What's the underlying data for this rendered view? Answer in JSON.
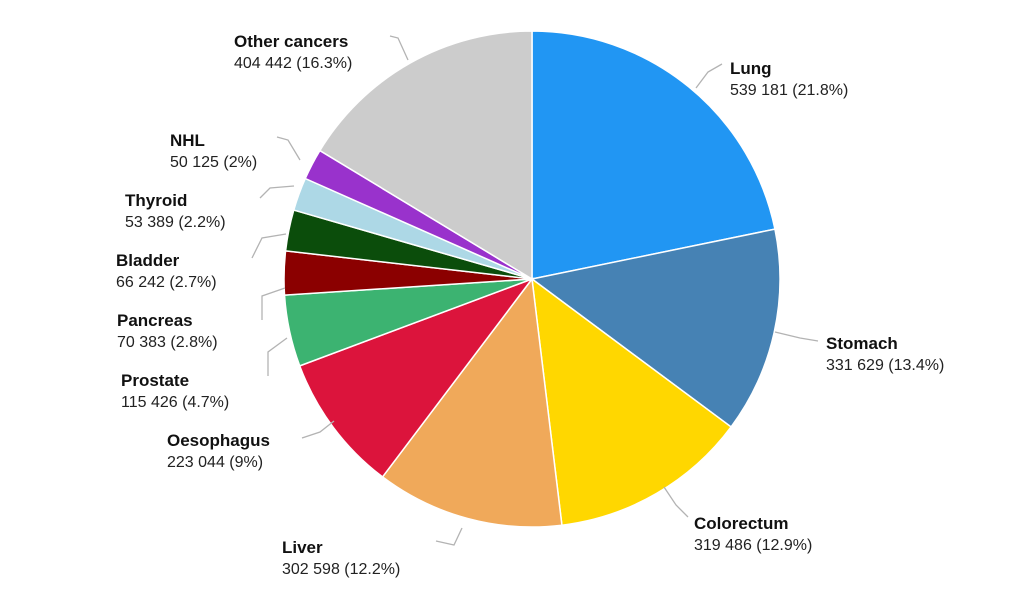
{
  "chart_data": {
    "type": "pie",
    "title": "",
    "start_angle_deg": 0,
    "direction": "clockwise",
    "legend": "none",
    "slices": [
      {
        "name": "Lung",
        "value": 539181,
        "value_label": "539 181",
        "percent_label": "21.8%",
        "color": "#2196F3"
      },
      {
        "name": "Stomach",
        "value": 331629,
        "value_label": "331 629",
        "percent_label": "13.4%",
        "color": "#4682B4"
      },
      {
        "name": "Colorectum",
        "value": 319486,
        "value_label": "319 486",
        "percent_label": "12.9%",
        "color": "#FFD700"
      },
      {
        "name": "Liver",
        "value": 302598,
        "value_label": "302 598",
        "percent_label": "12.2%",
        "color": "#F0A95A"
      },
      {
        "name": "Oesophagus",
        "value": 223044,
        "value_label": "223 044",
        "percent_label": "9%",
        "color": "#DC143C"
      },
      {
        "name": "Prostate",
        "value": 115426,
        "value_label": "115 426",
        "percent_label": "4.7%",
        "color": "#3CB371"
      },
      {
        "name": "Pancreas",
        "value": 70383,
        "value_label": "70 383",
        "percent_label": "2.8%",
        "color": "#8B0000"
      },
      {
        "name": "Bladder",
        "value": 66242,
        "value_label": "66 242",
        "percent_label": "2.7%",
        "color": "#0B4D0B"
      },
      {
        "name": "Thyroid",
        "value": 53389,
        "value_label": "53 389",
        "percent_label": "2.2%",
        "color": "#ADD8E6"
      },
      {
        "name": "NHL",
        "value": 50125,
        "value_label": "50 125",
        "percent_label": "2%",
        "color": "#9932CC"
      },
      {
        "name": "Other cancers",
        "value": 404442,
        "value_label": "404 442",
        "percent_label": "16.3%",
        "color": "#CCCCCC"
      }
    ]
  }
}
